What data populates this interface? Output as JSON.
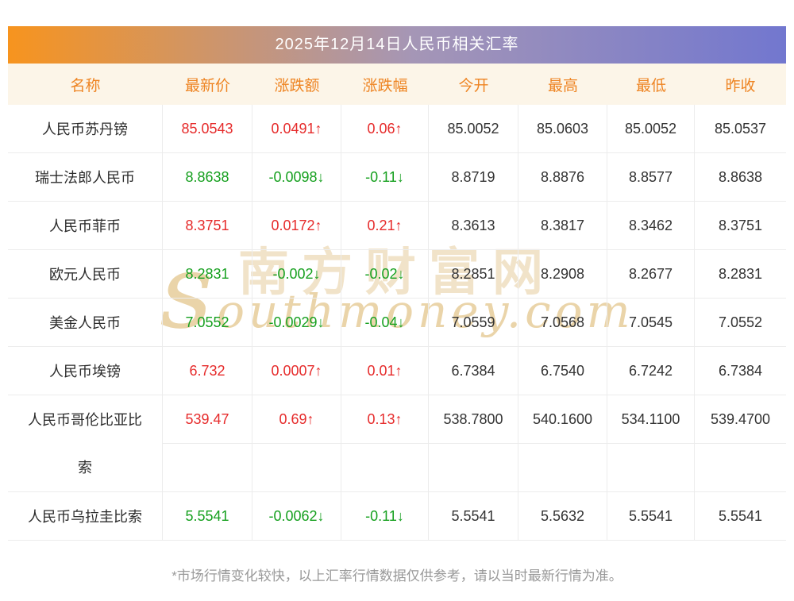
{
  "title": "2025年12月14日人民币相关汇率",
  "columns": [
    "名称",
    "最新价",
    "涨跌额",
    "涨跌幅",
    "今开",
    "最高",
    "最低",
    "昨收"
  ],
  "rows": [
    {
      "name": "人民币苏丹镑",
      "latest": "85.0543",
      "change": "0.0491↑",
      "pct": "0.06↑",
      "open": "85.0052",
      "high": "85.0603",
      "low": "85.0052",
      "prev": "85.0537",
      "trend": "up"
    },
    {
      "name": "瑞士法郎人民币",
      "latest": "8.8638",
      "change": "-0.0098↓",
      "pct": "-0.11↓",
      "open": "8.8719",
      "high": "8.8876",
      "low": "8.8577",
      "prev": "8.8638",
      "trend": "down"
    },
    {
      "name": "人民币菲币",
      "latest": "8.3751",
      "change": "0.0172↑",
      "pct": "0.21↑",
      "open": "8.3613",
      "high": "8.3817",
      "low": "8.3462",
      "prev": "8.3751",
      "trend": "up"
    },
    {
      "name": "欧元人民币",
      "latest": "8.2831",
      "change": "-0.002↓",
      "pct": "-0.02↓",
      "open": "8.2851",
      "high": "8.2908",
      "low": "8.2677",
      "prev": "8.2831",
      "trend": "down"
    },
    {
      "name": "美金人民币",
      "latest": "7.0552",
      "change": "-0.0029↓",
      "pct": "-0.04↓",
      "open": "7.0559",
      "high": "7.0568",
      "low": "7.0545",
      "prev": "7.0552",
      "trend": "down"
    },
    {
      "name": "人民币埃镑",
      "latest": "6.732",
      "change": "0.0007↑",
      "pct": "0.01↑",
      "open": "6.7384",
      "high": "6.7540",
      "low": "6.7242",
      "prev": "6.7384",
      "trend": "up"
    },
    {
      "name": "人民币哥伦比亚比索",
      "latest": "539.47",
      "change": "0.69↑",
      "pct": "0.13↑",
      "open": "538.7800",
      "high": "540.1600",
      "low": "534.1100",
      "prev": "539.4700",
      "trend": "up"
    },
    {
      "name": "人民币乌拉圭比索",
      "latest": "5.5541",
      "change": "-0.0062↓",
      "pct": "-0.11↓",
      "open": "5.5541",
      "high": "5.5632",
      "low": "5.5541",
      "prev": "5.5541",
      "trend": "down"
    }
  ],
  "watermark": {
    "cn": "南方财富网",
    "en": "southmoney.com"
  },
  "footnote": "*市场行情变化较快，以上汇率行情数据仅供参考，请以当时最新行情为准。",
  "palette": {
    "grad_left": "#f7941e",
    "grad_mid": "#a596b6",
    "grad_right": "#7277cf",
    "up": "#e62b2b",
    "down": "#16a01f",
    "header_text": "#ee8422",
    "header_bg": "#fcf5e8",
    "border": "#ececec",
    "text": "#2b2b2b",
    "note": "#999999"
  }
}
